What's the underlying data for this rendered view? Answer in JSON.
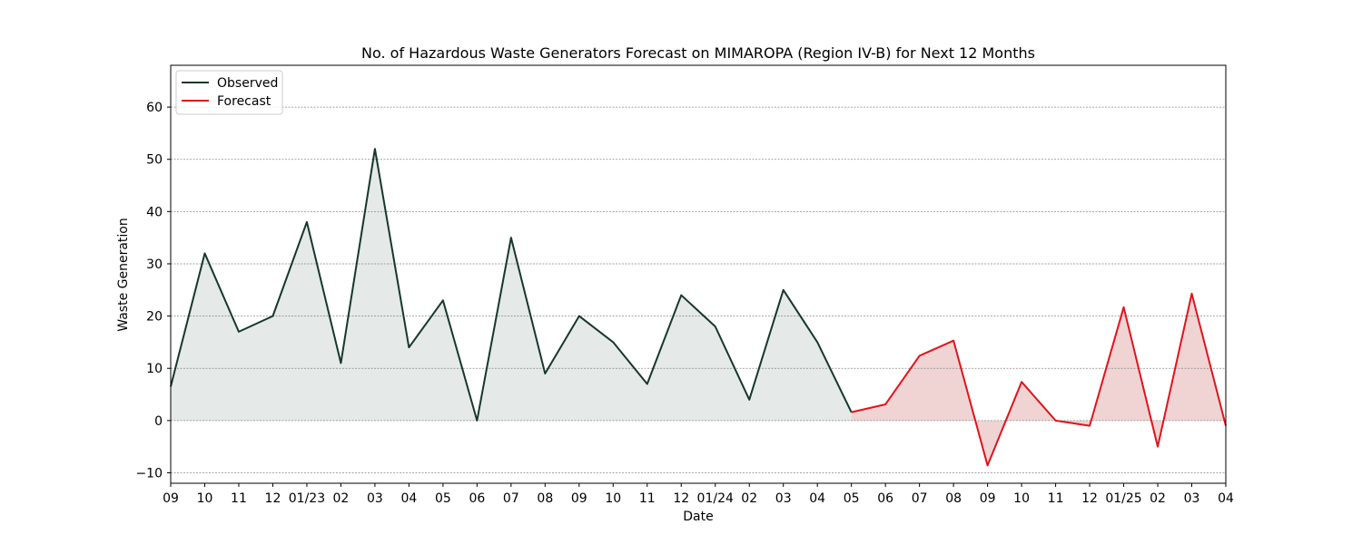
{
  "chart_data": {
    "type": "line",
    "title": "No. of Hazardous Waste Generators Forecast on MIMAROPA (Region IV-B) for Next 12 Months",
    "xlabel": "Date",
    "ylabel": "Waste Generation",
    "ylim": [
      -12,
      68
    ],
    "yticks": [
      -10,
      0,
      10,
      20,
      30,
      40,
      50,
      60
    ],
    "ytick_labels": [
      "−10",
      "0",
      "10",
      "20",
      "30",
      "40",
      "50",
      "60"
    ],
    "grid": "horizontal dotted",
    "legend_position": "top-left",
    "x_tick_labels": [
      "09",
      "10",
      "11",
      "12",
      "01/23",
      "02",
      "03",
      "04",
      "05",
      "06",
      "07",
      "08",
      "09",
      "10",
      "11",
      "12",
      "01/24",
      "02",
      "03",
      "04",
      "05",
      "06",
      "07",
      "08",
      "09",
      "10",
      "11",
      "12",
      "01/25",
      "02",
      "03",
      "04"
    ],
    "series": [
      {
        "name": "Observed",
        "color": "#16382a",
        "fill": "#16382a",
        "start_index": 0,
        "values": [
          6.5,
          32,
          17,
          20,
          38,
          11,
          52,
          14,
          23,
          0,
          35,
          9,
          20,
          15,
          7,
          24,
          18,
          4,
          25,
          15,
          1.6
        ]
      },
      {
        "name": "Forecast",
        "color": "#e0141c",
        "fill": "#b22222",
        "start_index": 20,
        "values": [
          1.6,
          3.1,
          12.4,
          15.3,
          -8.6,
          7.4,
          0,
          -1,
          21.7,
          -5,
          24.3,
          -1
        ]
      }
    ]
  }
}
